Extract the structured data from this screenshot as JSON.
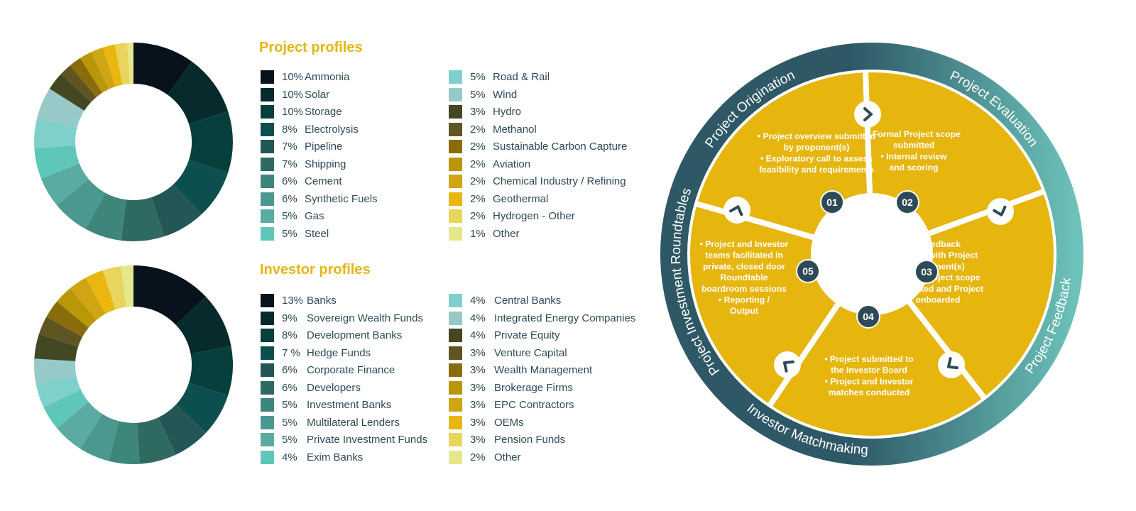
{
  "chart_data": [
    {
      "type": "pie",
      "title": "Project profiles",
      "categories": [
        "Ammonia",
        "Solar",
        "Storage",
        "Electrolysis",
        "Pipeline",
        "Shipping",
        "Cement",
        "Synthetic Fuels",
        "Gas",
        "Steel",
        "Road & Rail",
        "Wind",
        "Hydro",
        "Methanol",
        "Sustainable Carbon Capture",
        "Aviation",
        "Chemical Industry / Refining",
        "Geothermal",
        "Hydrogen - Other",
        "Other"
      ],
      "values": [
        10,
        10,
        10,
        8,
        7,
        7,
        6,
        6,
        5,
        5,
        5,
        5,
        3,
        2,
        2,
        2,
        2,
        2,
        2,
        1
      ],
      "labels": [
        "10%",
        "10%",
        "10%",
        "8%",
        "7%",
        "7%",
        "6%",
        "6%",
        "5%",
        "5%",
        "5%",
        "5%",
        "3%",
        "2%",
        "2%",
        "2%",
        "2%",
        "2%",
        "2%",
        "1%"
      ],
      "colors": [
        "#07121c",
        "#072a2c",
        "#063f3c",
        "#0c4f4e",
        "#245656",
        "#2f6a62",
        "#3e857c",
        "#4a9890",
        "#5aaba2",
        "#5ec7ba",
        "#7fd0cb",
        "#97c9c8",
        "#444822",
        "#5f5523",
        "#8a6c0d",
        "#b99709",
        "#d0a514",
        "#e9b70f",
        "#e8d55e",
        "#e6e68c"
      ],
      "legend_position": "right"
    },
    {
      "type": "pie",
      "title": "Investor profiles",
      "categories": [
        "Banks",
        "Sovereign Wealth Funds",
        "Development Banks",
        "Hedge Funds",
        "Corporate Finance",
        "Developers",
        "Investment Banks",
        "Multilateral Lenders",
        "Private Investment Funds",
        "Exim Banks",
        "Central Banks",
        "Integrated Energy Companies",
        "Private Equity",
        "Venture Capital",
        "Wealth Management",
        "Brokerage Firms",
        "EPC Contractors",
        "OEMs",
        "Pension Funds",
        "Other"
      ],
      "values": [
        13,
        9,
        8,
        7,
        6,
        6,
        5,
        5,
        5,
        4,
        4,
        4,
        4,
        3,
        3,
        3,
        3,
        3,
        3,
        2
      ],
      "labels": [
        "13%",
        "9%",
        "8%",
        "7 %",
        "6%",
        "6%",
        "5%",
        "5%",
        "5%",
        "4%",
        "4%",
        "4%",
        "4%",
        "3%",
        "3%",
        "3%",
        "3%",
        "3%",
        "3%",
        "2%"
      ],
      "colors": [
        "#07121c",
        "#072a2c",
        "#063f3c",
        "#0c4f4e",
        "#245656",
        "#2f6a62",
        "#3e857c",
        "#4a9890",
        "#5aaba2",
        "#5ec7ba",
        "#7fd0cb",
        "#97c9c8",
        "#444822",
        "#5f5523",
        "#8a6c0d",
        "#b99709",
        "#d0a514",
        "#e9b70f",
        "#e8d55e",
        "#e6e68c"
      ],
      "legend_position": "right"
    }
  ],
  "cycle": {
    "ring_labels": [
      "Project Origination",
      "Project Evaluation",
      "Project Feedback",
      "Investor Matchmaking",
      "Project Investment Roundtables"
    ],
    "stages": [
      {
        "number": "01",
        "text": [
          "• Project overview submitted",
          "by proponent(s)",
          "• Exploratory call to assess",
          "feasibility and requirements"
        ]
      },
      {
        "number": "02",
        "text": [
          "• Formal Project scope",
          "submitted",
          "• Internal review",
          "and scoring"
        ]
      },
      {
        "number": "03",
        "text": [
          "• Feedback",
          "shared with Project",
          "proponent(s)",
          "• Final Project scope",
          "submitted and Project",
          "onboarded"
        ]
      },
      {
        "number": "04",
        "text": [
          "• Project submitted to",
          "the Investor Board",
          "• Project and Investor",
          "matches conducted"
        ]
      },
      {
        "number": "05",
        "text": [
          "• Project and Investor",
          "teams facilitated in",
          "private, closed door",
          "Roundtable",
          "boardroom sessions",
          "• Reporting /",
          "Output"
        ]
      }
    ],
    "colors": {
      "segment": "#e6b50e",
      "ring_dark": "#2e5866",
      "ring_light": "#6ec5bc",
      "badge": "#2e4a57",
      "divider": "#ffffff"
    },
    "arrow_icon": "chevron-arrow-icon"
  }
}
